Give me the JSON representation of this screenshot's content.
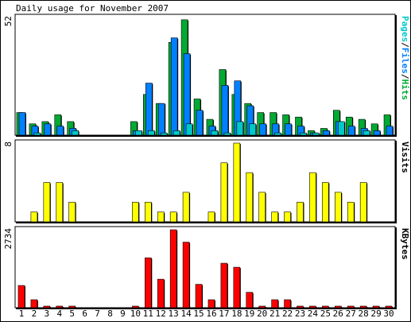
{
  "title": "Daily usage for November 2007",
  "colors": {
    "hits": "#00aa33",
    "files": "#0080ff",
    "pages": "#00c8c8",
    "visits": "#ffff00",
    "kbytes": "#ff0000",
    "weekend_label": "#00a000",
    "weekday_label": "#000000",
    "border": "#000000",
    "background": "#ffffff"
  },
  "chart_data": [
    {
      "type": "bar",
      "title": "Daily usage for November 2007",
      "ylabel": "",
      "ymax_label": "52",
      "ylim": [
        0,
        52
      ],
      "legend": [
        "Pages",
        "/",
        "Files",
        "/",
        "Hits"
      ],
      "legend_colors": [
        "#00c8c8",
        "#000000",
        "#0080ff",
        "#000000",
        "#00aa33"
      ],
      "categories": [
        "1",
        "2",
        "3",
        "4",
        "5",
        "6",
        "7",
        "8",
        "9",
        "10",
        "11",
        "12",
        "13",
        "14",
        "15",
        "16",
        "17",
        "18",
        "19",
        "20",
        "21",
        "22",
        "23",
        "24",
        "25",
        "26",
        "27",
        "28",
        "29",
        "30"
      ],
      "series": [
        {
          "name": "Hits",
          "values": [
            10,
            5,
            6,
            9,
            6,
            0,
            0,
            0,
            0,
            6,
            18,
            14,
            41,
            51,
            16,
            7,
            29,
            18,
            14,
            10,
            10,
            9,
            8,
            2,
            3,
            11,
            8,
            7,
            5,
            9
          ]
        },
        {
          "name": "Files",
          "values": [
            10,
            4,
            5,
            4,
            3,
            0,
            0,
            0,
            0,
            2,
            23,
            14,
            43,
            36,
            11,
            4,
            22,
            24,
            13,
            5,
            5,
            5,
            4,
            1,
            2,
            6,
            4,
            3,
            2,
            4
          ]
        },
        {
          "name": "Pages",
          "values": [
            0,
            1,
            0,
            0,
            2,
            0,
            0,
            0,
            0,
            2,
            2,
            1,
            2,
            5,
            0,
            2,
            1,
            6,
            5,
            0,
            1,
            0,
            1,
            1,
            0,
            6,
            0,
            2,
            0,
            0
          ]
        }
      ]
    },
    {
      "type": "bar",
      "ymax_label": "8",
      "ylim": [
        0,
        8
      ],
      "legend": [
        "Visits"
      ],
      "categories": [
        "1",
        "2",
        "3",
        "4",
        "5",
        "6",
        "7",
        "8",
        "9",
        "10",
        "11",
        "12",
        "13",
        "14",
        "15",
        "16",
        "17",
        "18",
        "19",
        "20",
        "21",
        "22",
        "23",
        "24",
        "25",
        "26",
        "27",
        "28",
        "29",
        "30"
      ],
      "series": [
        {
          "name": "Visits",
          "values": [
            0,
            1,
            4,
            4,
            2,
            0,
            0,
            0,
            0,
            2,
            2,
            1,
            1,
            3,
            0,
            1,
            6,
            8,
            5,
            3,
            1,
            1,
            2,
            5,
            4,
            3,
            2,
            4,
            0,
            0
          ]
        }
      ]
    },
    {
      "type": "bar",
      "ymax_label": "2734",
      "ylim": [
        0,
        2734
      ],
      "legend": [
        "KBytes"
      ],
      "categories": [
        "1",
        "2",
        "3",
        "4",
        "5",
        "6",
        "7",
        "8",
        "9",
        "10",
        "11",
        "12",
        "13",
        "14",
        "15",
        "16",
        "17",
        "18",
        "19",
        "20",
        "21",
        "22",
        "23",
        "24",
        "25",
        "26",
        "27",
        "28",
        "29",
        "30"
      ],
      "series": [
        {
          "name": "KBytes",
          "values": [
            780,
            280,
            40,
            40,
            40,
            0,
            0,
            0,
            0,
            40,
            1750,
            1000,
            2734,
            2300,
            820,
            280,
            1560,
            1420,
            540,
            40,
            280,
            280,
            40,
            40,
            40,
            40,
            40,
            40,
            40,
            40
          ]
        }
      ]
    }
  ],
  "weekend_days": [
    3,
    4,
    10,
    11,
    17,
    18,
    24,
    25
  ]
}
